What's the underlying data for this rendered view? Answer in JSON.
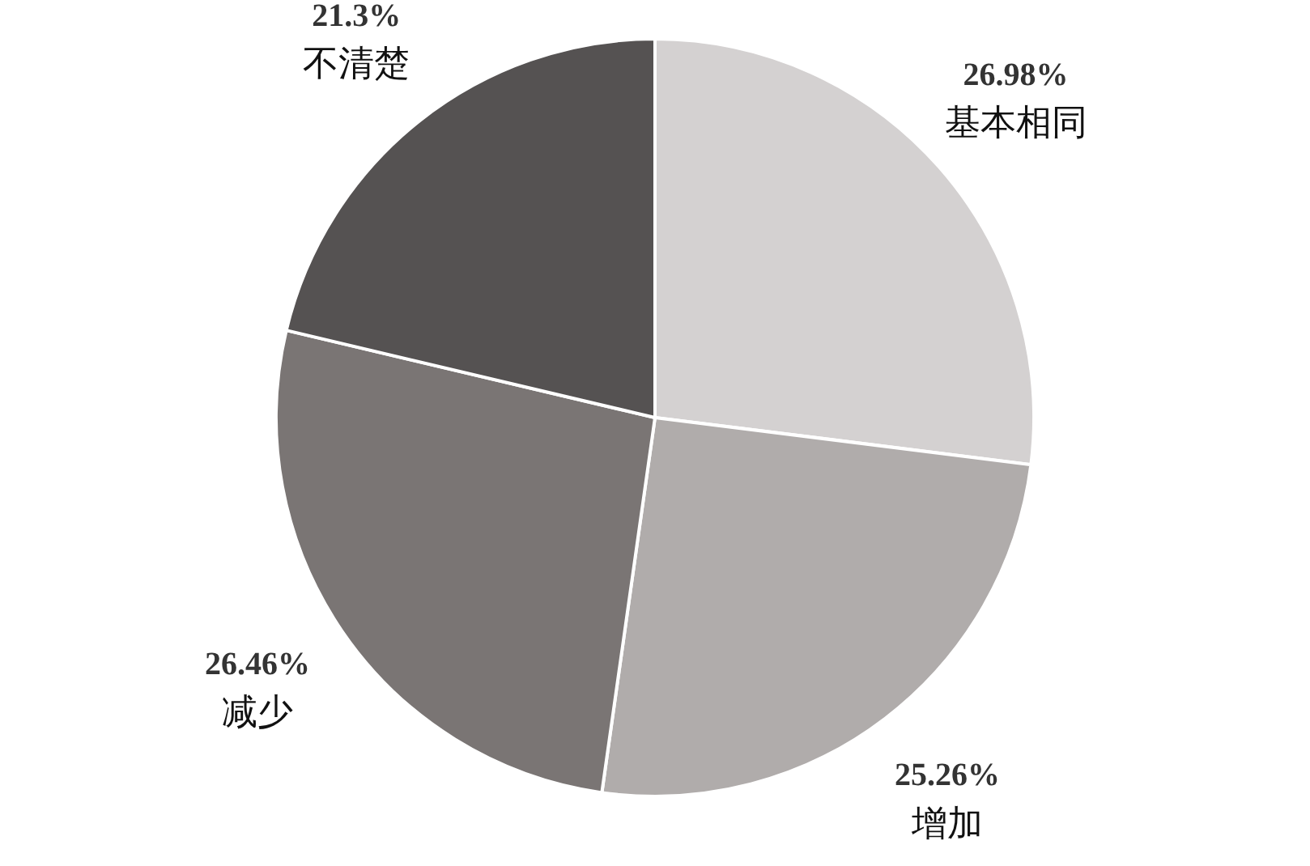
{
  "chart_data": {
    "type": "pie",
    "categories": [
      "基本相同",
      "增加",
      "减少",
      "不清楚"
    ],
    "values": [
      26.98,
      25.26,
      26.46,
      21.3
    ],
    "value_labels": [
      "26.98%",
      "25.26%",
      "26.46%",
      "21.3%"
    ],
    "colors": [
      "#d4d1d1",
      "#b0acab",
      "#7a7574",
      "#555252"
    ],
    "legend": false
  }
}
